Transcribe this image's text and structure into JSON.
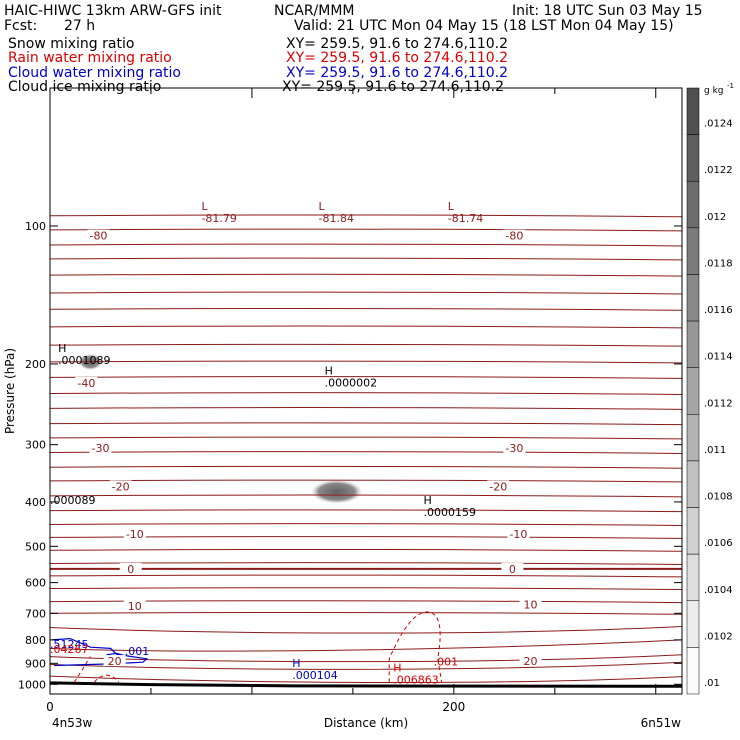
{
  "header": {
    "model": "HAIC-HIWC 13km ARW-GFS init",
    "center": "NCAR/MMM",
    "init": "Init: 18 UTC Sun 03 May 15",
    "fcst_label": "Fcst:",
    "fcst_value": "27 h",
    "valid": "Valid: 21 UTC Mon 04 May 15 (18 LST Mon 04 May 15)"
  },
  "fields": [
    {
      "name": "Snow mixing ratio",
      "xy": "XY= 259.5, 91.6 to 274.6,110.2",
      "color": "#000000"
    },
    {
      "name": "Rain water mixing ratio",
      "xy": "XY= 259.5, 91.6 to 274.6,110.2",
      "color": "#dd0000"
    },
    {
      "name": "Cloud water mixing ratio",
      "xy": "XY= 259.5, 91.6 to 274.6,110.2",
      "color": "#0000cc"
    },
    {
      "name": "Cloud ice mixing ratio",
      "xy": "XY= 259.5, 91.6 to 274.6,110.2",
      "color": "#000000"
    }
  ],
  "chart_data": {
    "type": "cross-section contour",
    "ylabel": "Pressure (hPa)",
    "xlabel": "Distance (km)",
    "left_label": "4n53w",
    "right_label": "6n51w",
    "ylim": [
      1050,
      50
    ],
    "xlim": [
      0,
      313
    ],
    "y_log_pressure": true,
    "yticks": [
      100,
      200,
      300,
      400,
      500,
      600,
      700,
      800,
      900,
      1000
    ],
    "xticks": [
      0,
      200
    ],
    "colorbar": {
      "unit": "g kg",
      "unit_exp": "-1",
      "levels": [
        ".0124",
        ".0122",
        ".012",
        ".0118",
        ".0116",
        ".0114",
        ".0112",
        ".011",
        ".0108",
        ".0106",
        ".0104",
        ".0102",
        ".01"
      ]
    },
    "temperature_labels": [
      {
        "text": "-80",
        "x": 24,
        "p": 105
      },
      {
        "text": "-80",
        "x": 230,
        "p": 105
      },
      {
        "text": "-40",
        "x": 18,
        "p": 220
      },
      {
        "text": "-30",
        "x": 25,
        "p": 305
      },
      {
        "text": "-30",
        "x": 230,
        "p": 305
      },
      {
        "text": "-20",
        "x": 35,
        "p": 370
      },
      {
        "text": "-20",
        "x": 222,
        "p": 370
      },
      {
        "text": "-10",
        "x": 42,
        "p": 470
      },
      {
        "text": "-10",
        "x": 232,
        "p": 470
      },
      {
        "text": "0",
        "x": 40,
        "p": 560
      },
      {
        "text": "0",
        "x": 229,
        "p": 560
      },
      {
        "text": "10",
        "x": 42,
        "p": 675
      },
      {
        "text": "10",
        "x": 238,
        "p": 670
      },
      {
        "text": "20",
        "x": 32,
        "p": 890
      },
      {
        "text": "20",
        "x": 238,
        "p": 890
      }
    ],
    "extrema": [
      {
        "mark": "L",
        "text": "-81.79",
        "x": 75,
        "p": 97,
        "color": "#8b1a1a"
      },
      {
        "mark": "L",
        "text": "-81.84",
        "x": 133,
        "p": 97,
        "color": "#8b1a1a"
      },
      {
        "mark": "L",
        "text": "-81.74",
        "x": 197,
        "p": 97,
        "color": "#8b1a1a"
      },
      {
        "mark": "H",
        "text": ".0001089",
        "x": 4,
        "p": 198,
        "color": "#000000"
      },
      {
        "mark": "H",
        "text": ".0000002",
        "x": 136,
        "p": 222,
        "color": "#000000"
      },
      {
        "mark": "",
        "text": ".000089",
        "x": 0,
        "p": 400,
        "color": "#000000"
      },
      {
        "mark": "H",
        "text": ".0000159",
        "x": 185,
        "p": 425,
        "color": "#000000"
      },
      {
        "mark": "",
        "text": ".51245",
        "x": 0,
        "p": 825,
        "color": "#0000cc"
      },
      {
        "mark": "",
        "text": ".04267",
        "x": 0,
        "p": 845,
        "color": "#dd0000"
      },
      {
        "mark": "",
        "text": ".001",
        "x": 37,
        "p": 855,
        "color": "#0000cc"
      },
      {
        "mark": "",
        "text": ".001",
        "x": 190,
        "p": 900,
        "color": "#dd0000"
      },
      {
        "mark": "H",
        "text": ".000104",
        "x": 120,
        "p": 965,
        "color": "#0000cc"
      },
      {
        "mark": "H",
        "text": ".006863",
        "x": 170,
        "p": 985,
        "color": "#dd0000"
      }
    ],
    "ice_patches": [
      {
        "x": 20,
        "p": 198,
        "rx": 12,
        "ry": 8
      },
      {
        "x": 142,
        "p": 380,
        "rx": 26,
        "ry": 12
      }
    ]
  }
}
